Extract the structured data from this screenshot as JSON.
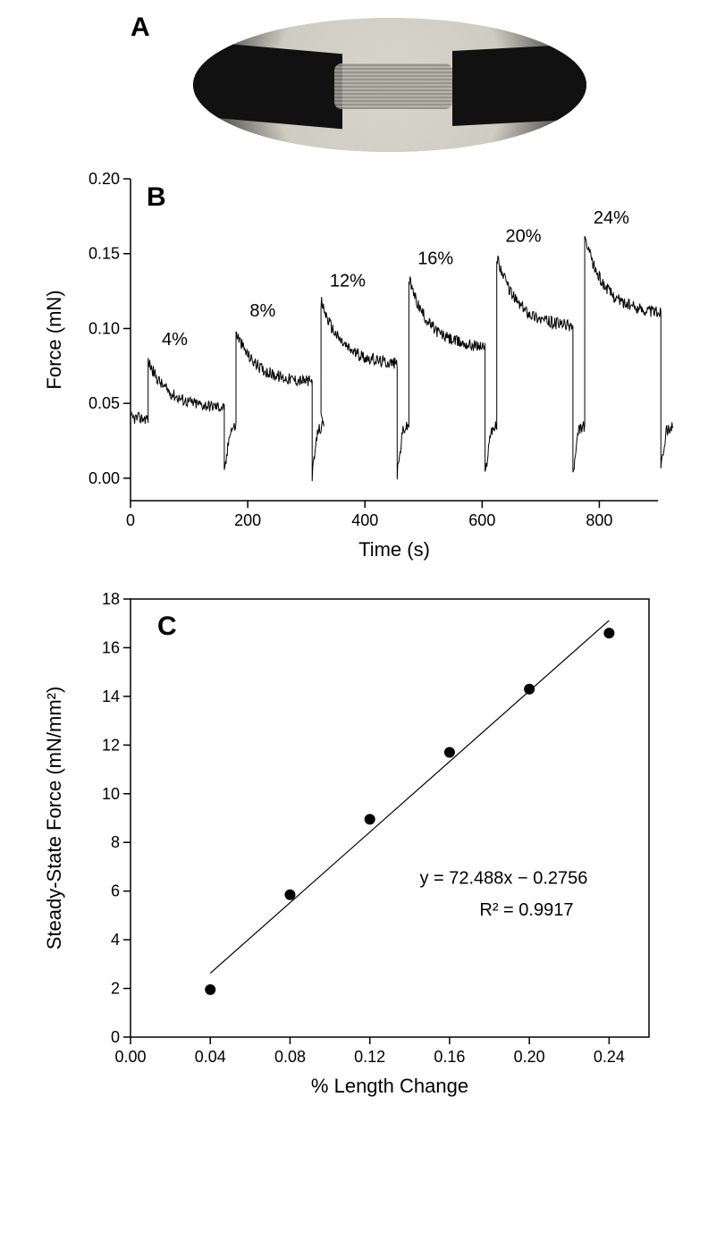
{
  "panelA": {
    "label": "A"
  },
  "panelB": {
    "type": "line-trace",
    "label": "B",
    "xlabel": "Time (s)",
    "ylabel": "Force (mN)",
    "xlim": [
      0,
      900
    ],
    "ylim": [
      -0.015,
      0.2
    ],
    "xticks": [
      0,
      200,
      400,
      600,
      800
    ],
    "yticks": [
      0.0,
      0.05,
      0.1,
      0.15,
      0.2
    ],
    "ytick_labels": [
      "0.00",
      "0.05",
      "0.10",
      "0.15",
      "0.20"
    ],
    "title_fontsize": 22,
    "tick_fontsize": 18,
    "trace_color": "#000000",
    "trace_linewidth": 1,
    "background_color": "#ffffff",
    "noise_amplitude": 0.004,
    "steps": [
      {
        "t_start": 30,
        "peak": 0.077,
        "plateau_start": 0.055,
        "plateau_end": 0.047,
        "pct": "4%"
      },
      {
        "t_start": 180,
        "peak": 0.096,
        "plateau_start": 0.073,
        "plateau_end": 0.064,
        "pct": "8%"
      },
      {
        "t_start": 325,
        "peak": 0.116,
        "plateau_start": 0.09,
        "plateau_end": 0.076,
        "pct": "12%"
      },
      {
        "t_start": 475,
        "peak": 0.131,
        "plateau_start": 0.1,
        "plateau_end": 0.087,
        "pct": "16%"
      },
      {
        "t_start": 625,
        "peak": 0.146,
        "plateau_start": 0.115,
        "plateau_end": 0.101,
        "pct": "20%"
      },
      {
        "t_start": 775,
        "peak": 0.158,
        "plateau_start": 0.125,
        "plateau_end": 0.11,
        "pct": "24%"
      }
    ],
    "baseline_start": 0.04,
    "relax_low": 0.03,
    "step_duration": 130,
    "gap_duration": 20,
    "final_drop_to": 0.01
  },
  "panelC": {
    "type": "scatter-with-fit",
    "label": "C",
    "xlabel": "% Length Change",
    "ylabel": "Steady-State Force (mN/mm²)",
    "ylabel_super": "2",
    "xlim": [
      0.0,
      0.26
    ],
    "ylim": [
      0,
      18
    ],
    "xticks": [
      0.0,
      0.04,
      0.08,
      0.12,
      0.16,
      0.2,
      0.24
    ],
    "xtick_labels": [
      "0.00",
      "0.04",
      "0.08",
      "0.12",
      "0.16",
      "0.20",
      "0.24"
    ],
    "yticks": [
      0,
      2,
      4,
      6,
      8,
      10,
      12,
      14,
      16,
      18
    ],
    "tick_fontsize": 18,
    "title_fontsize": 22,
    "marker_size": 6,
    "marker_color": "#000000",
    "line_color": "#000000",
    "background_color": "#ffffff",
    "border_color": "#000000",
    "points": [
      {
        "x": 0.04,
        "y": 1.95
      },
      {
        "x": 0.08,
        "y": 5.85
      },
      {
        "x": 0.12,
        "y": 8.95
      },
      {
        "x": 0.16,
        "y": 11.7
      },
      {
        "x": 0.2,
        "y": 14.3
      },
      {
        "x": 0.24,
        "y": 16.6
      }
    ],
    "fit": {
      "slope": 72.488,
      "intercept": -0.2756,
      "r2": 0.9917,
      "x_from": 0.04,
      "x_to": 0.24
    },
    "equation_text": "y = 72.488x − 0.2756",
    "r2_text": "R² = 0.9917"
  }
}
